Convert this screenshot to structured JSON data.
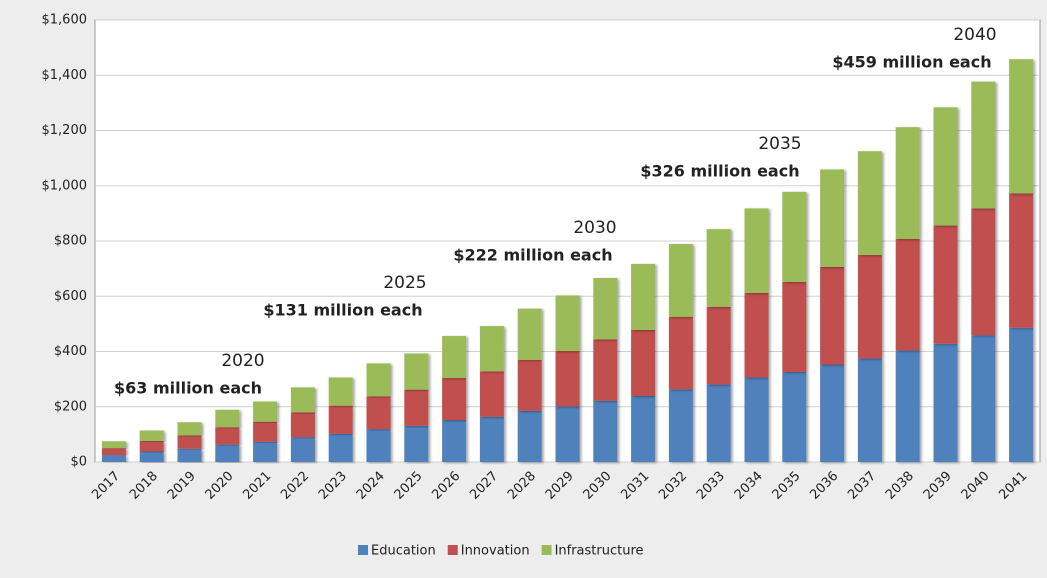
{
  "chart_data": {
    "type": "stacked_bar",
    "categories": [
      "2017",
      "2018",
      "2019",
      "2020",
      "2021",
      "2022",
      "2023",
      "2024",
      "2025",
      "2026",
      "2027",
      "2028",
      "2029",
      "2030",
      "2031",
      "2032",
      "2033",
      "2034",
      "2035",
      "2036",
      "2037",
      "2038",
      "2039",
      "2040",
      "2041"
    ],
    "series": [
      {
        "name": "Education",
        "color": "#4f81bd",
        "values": [
          25,
          38,
          48,
          63,
          73,
          90,
          102,
          119,
          131,
          152,
          164,
          185,
          201,
          222,
          239,
          263,
          281,
          306,
          326,
          353,
          375,
          404,
          428,
          459,
          486
        ]
      },
      {
        "name": "Innovation",
        "color": "#c0504d",
        "values": [
          25,
          38,
          48,
          63,
          73,
          90,
          102,
          119,
          131,
          152,
          164,
          185,
          201,
          222,
          239,
          263,
          281,
          306,
          326,
          353,
          375,
          404,
          428,
          459,
          486
        ]
      },
      {
        "name": "Infrastructure",
        "color": "#9bbb59",
        "values": [
          25,
          38,
          48,
          63,
          73,
          90,
          102,
          119,
          131,
          152,
          164,
          185,
          201,
          222,
          239,
          263,
          281,
          306,
          326,
          353,
          375,
          404,
          428,
          459,
          486
        ]
      }
    ],
    "ylim": [
      0,
      1600
    ],
    "yticks": [
      {
        "value": 0,
        "label": "$0"
      },
      {
        "value": 200,
        "label": "$200"
      },
      {
        "value": 400,
        "label": "$400"
      },
      {
        "value": 600,
        "label": "$600"
      },
      {
        "value": 800,
        "label": "$800"
      },
      {
        "value": 1000,
        "label": "$1,000"
      },
      {
        "value": 1200,
        "label": "$1,200"
      },
      {
        "value": 1400,
        "label": "$1,400"
      },
      {
        "value": 1600,
        "label": "$1,600"
      }
    ],
    "grid": true,
    "legend": "bottom",
    "annotations": [
      {
        "year": "2020",
        "text": "$63 million each"
      },
      {
        "year": "2025",
        "text": "$131 million each"
      },
      {
        "year": "2030",
        "text": "$222 million each"
      },
      {
        "year": "2035",
        "text": "$326 million each"
      },
      {
        "year": "2040",
        "text": "$459 million each"
      }
    ]
  }
}
